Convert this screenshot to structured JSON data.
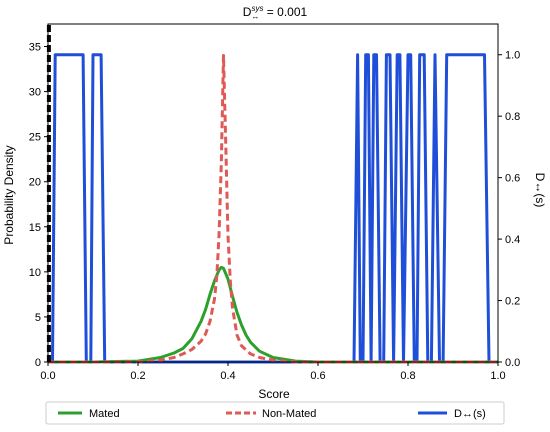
{
  "chart_data": {
    "type": "line",
    "title_main": "D",
    "title_sup": "sys",
    "title_sub": "↔",
    "title_rest": " = 0.001",
    "xlabel": "Score",
    "ylabel_left": "Probability Density",
    "ylabel_right": "D↔(s)",
    "xlim": [
      0.0,
      1.0
    ],
    "ylim_left": [
      0,
      37.5
    ],
    "ylim_right": [
      0,
      1.1
    ],
    "x_ticks": [
      "0.0",
      "0.2",
      "0.4",
      "0.6",
      "0.8",
      "1.0"
    ],
    "x_tick_values": [
      0.0,
      0.2,
      0.4,
      0.6,
      0.8,
      1.0
    ],
    "y_left_ticks": [
      "0",
      "5",
      "10",
      "15",
      "20",
      "25",
      "30",
      "35"
    ],
    "y_left_tick_values": [
      0,
      5,
      10,
      15,
      20,
      25,
      30,
      35
    ],
    "y_right_ticks": [
      "0.0",
      "0.2",
      "0.4",
      "0.6",
      "0.8",
      "1.0"
    ],
    "y_right_tick_values": [
      0.0,
      0.2,
      0.4,
      0.6,
      0.8,
      1.0
    ],
    "legend_position": "bottom, outside",
    "series": [
      {
        "name": "Mated",
        "axis": "left",
        "color": "#2ca02c",
        "style": "solid",
        "x": [
          0.0,
          0.1,
          0.2,
          0.25,
          0.28,
          0.3,
          0.32,
          0.34,
          0.35,
          0.36,
          0.37,
          0.38,
          0.385,
          0.39,
          0.4,
          0.41,
          0.42,
          0.43,
          0.44,
          0.45,
          0.47,
          0.5,
          0.55,
          0.6,
          0.7,
          1.0
        ],
        "y": [
          0.0,
          0.0,
          0.1,
          0.5,
          1.0,
          1.5,
          2.6,
          4.5,
          5.8,
          7.5,
          9.0,
          10.2,
          10.5,
          10.4,
          9.2,
          7.3,
          5.5,
          4.1,
          3.0,
          2.2,
          1.2,
          0.5,
          0.1,
          0.0,
          0.0,
          0.0
        ]
      },
      {
        "name": "Non-Mated",
        "axis": "left",
        "color": "#e05a55",
        "style": "dashed",
        "x": [
          0.0,
          0.2,
          0.25,
          0.28,
          0.3,
          0.32,
          0.34,
          0.35,
          0.36,
          0.37,
          0.375,
          0.38,
          0.385,
          0.39,
          0.395,
          0.4,
          0.405,
          0.41,
          0.42,
          0.43,
          0.45,
          0.47,
          0.5,
          0.55,
          0.6,
          1.0
        ],
        "y": [
          0.0,
          0.0,
          0.2,
          0.5,
          0.9,
          1.4,
          2.3,
          3.1,
          4.5,
          7.0,
          9.5,
          14.0,
          22.0,
          34.0,
          24.0,
          14.0,
          9.0,
          6.0,
          3.0,
          1.8,
          0.9,
          0.5,
          0.2,
          0.0,
          0.0,
          0.0
        ]
      },
      {
        "name": "D↔(s)",
        "axis": "right",
        "color": "#1f4fd8",
        "style": "solid",
        "x": [
          0.0,
          0.01,
          0.016,
          0.078,
          0.085,
          0.095,
          0.1,
          0.118,
          0.126,
          0.5,
          0.68,
          0.688,
          0.694,
          0.7,
          0.706,
          0.712,
          0.718,
          0.724,
          0.73,
          0.738,
          0.746,
          0.752,
          0.76,
          0.768,
          0.776,
          0.782,
          0.79,
          0.8,
          0.806,
          0.814,
          0.82,
          0.826,
          0.836,
          0.844,
          0.852,
          0.86,
          0.87,
          0.878,
          0.886,
          0.97,
          0.98,
          1.0
        ],
        "y": [
          0.0,
          0.0,
          1.0,
          1.0,
          0.0,
          0.0,
          1.0,
          1.0,
          0.0,
          0.0,
          0.0,
          1.0,
          0.0,
          0.0,
          1.0,
          1.0,
          0.0,
          1.0,
          1.0,
          0.0,
          0.0,
          1.0,
          1.0,
          0.0,
          1.0,
          1.0,
          0.0,
          1.0,
          1.0,
          0.0,
          0.0,
          1.0,
          1.0,
          0.0,
          0.0,
          1.0,
          0.0,
          0.0,
          1.0,
          1.0,
          0.0,
          0.0
        ]
      },
      {
        "name": "",
        "axis": "left",
        "color": "#000000",
        "style": "dashed",
        "x": [
          0.002,
          0.002
        ],
        "y": [
          0,
          37.5
        ]
      }
    ]
  }
}
